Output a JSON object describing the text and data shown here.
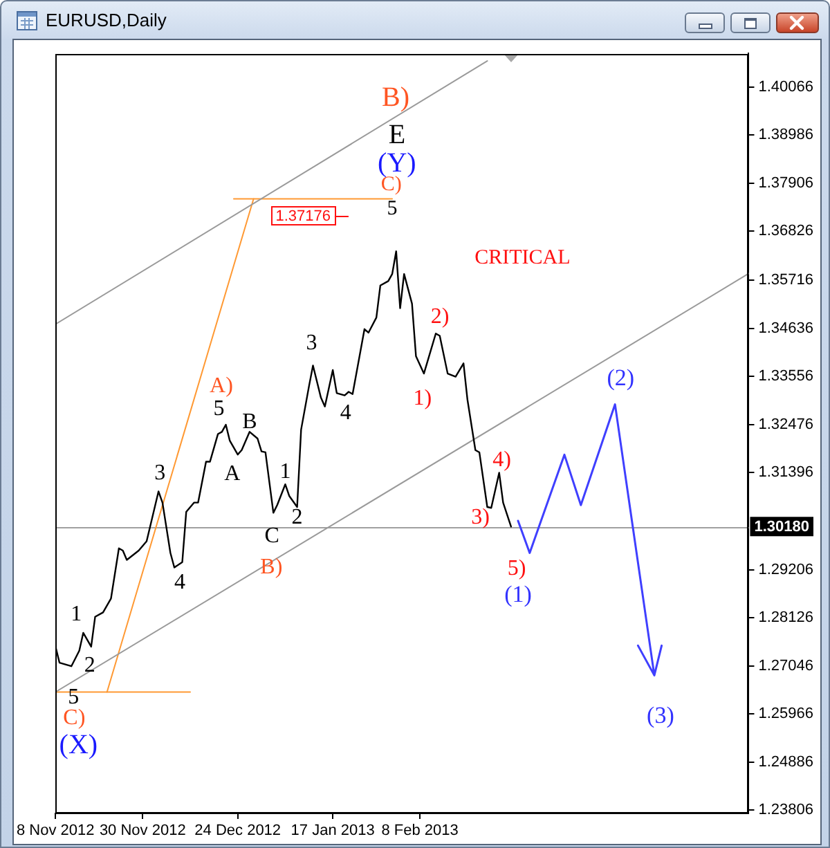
{
  "chart_data": {
    "type": "line",
    "title": "EURUSD,Daily",
    "series": [
      {
        "color": "#000000",
        "x": [
          "2012-11-08",
          "2012-11-09",
          "2012-11-12",
          "2012-11-14",
          "2012-11-15",
          "2012-11-17",
          "2012-11-18",
          "2012-11-20",
          "2012-11-22",
          "2012-11-24",
          "2012-11-25",
          "2012-11-26",
          "2012-11-29",
          "2012-12-01",
          "2012-12-04",
          "2012-12-05",
          "2012-12-07",
          "2012-12-08",
          "2012-12-10",
          "2012-12-11",
          "2012-12-13",
          "2012-12-14",
          "2012-12-16",
          "2012-12-17",
          "2012-12-19",
          "2012-12-20",
          "2012-12-21",
          "2012-12-22",
          "2012-12-24",
          "2012-12-25",
          "2012-12-27",
          "2012-12-29",
          "2012-12-30",
          "2012-12-31",
          "2013-01-02",
          "2013-01-03",
          "2013-01-05",
          "2013-01-06",
          "2013-01-08",
          "2013-01-09",
          "2013-01-11",
          "2013-01-12",
          "2013-01-14",
          "2013-01-15",
          "2013-01-17",
          "2013-01-18",
          "2013-01-20",
          "2013-01-21",
          "2013-01-22",
          "2013-01-25",
          "2013-01-26",
          "2013-01-28",
          "2013-01-29",
          "2013-01-31",
          "2013-02-01",
          "2013-02-02",
          "2013-02-03",
          "2013-02-04",
          "2013-02-06",
          "2013-02-07",
          "2013-02-09",
          "2013-02-12",
          "2013-02-13",
          "2013-02-15",
          "2013-02-17",
          "2013-02-19",
          "2013-02-20",
          "2013-02-22",
          "2013-02-23",
          "2013-02-25",
          "2013-02-26",
          "2013-02-28",
          "2013-03-01",
          "2013-03-03"
        ],
        "values": [
          1.2748,
          1.2712,
          1.2704,
          1.2739,
          1.2779,
          1.2748,
          1.2815,
          1.2825,
          1.2856,
          1.2969,
          1.2964,
          1.2943,
          1.2964,
          1.2985,
          1.3097,
          1.3072,
          1.2959,
          1.2926,
          1.2938,
          1.3051,
          1.3072,
          1.3072,
          1.3164,
          1.3164,
          1.3226,
          1.3231,
          1.3247,
          1.3211,
          1.318,
          1.319,
          1.3231,
          1.3216,
          1.3187,
          1.3185,
          1.3049,
          1.3067,
          1.3113,
          1.3087,
          1.3062,
          1.3236,
          1.3334,
          1.338,
          1.3308,
          1.3288,
          1.337,
          1.3318,
          1.3313,
          1.3321,
          1.3316,
          1.3462,
          1.3454,
          1.3488,
          1.356,
          1.357,
          1.3586,
          1.3637,
          1.3509,
          1.3586,
          1.3519,
          1.3401,
          1.3362,
          1.3452,
          1.3447,
          1.3362,
          1.3355,
          1.3385,
          1.3303,
          1.319,
          1.3185,
          1.3062,
          1.306,
          1.3139,
          1.3072,
          1.3018
        ]
      },
      {
        "color": "#9a9a9a",
        "x": [
          "2012-11-08",
          "2013-02-25"
        ],
        "values": [
          1.3473,
          1.4065
        ]
      },
      {
        "color": "#9a9a9a",
        "x": [
          "2012-11-08",
          "2013-05-02"
        ],
        "values": [
          1.2646,
          1.3587
        ]
      },
      {
        "color": "#ff9933",
        "x": [
          "2012-11-08",
          "2012-12-12"
        ],
        "values": [
          1.2646,
          1.2646
        ]
      },
      {
        "color": "#ff9933",
        "x": [
          "2012-11-21",
          "2012-12-28"
        ],
        "values": [
          1.2646,
          1.3755
        ]
      },
      {
        "color": "#ff9933",
        "x": [
          "2012-12-23",
          "2013-02-01"
        ],
        "values": [
          1.3755,
          1.3755
        ]
      }
    ],
    "xlim": [
      "2012-11-08",
      "2013-05-02"
    ],
    "xticks": [
      {
        "value": "2012-11-08",
        "label": "8 Nov 2012"
      },
      {
        "value": "2012-11-30",
        "label": "30 Nov 2012"
      },
      {
        "value": "2012-12-24",
        "label": "24 Dec 2012"
      },
      {
        "value": "2013-01-17",
        "label": "17 Jan 2013"
      },
      {
        "value": "2013-02-08",
        "label": "8 Feb 2013"
      }
    ],
    "ylim": [
      1.2373,
      1.4082
    ],
    "yticks": [
      1.23806,
      1.24886,
      1.25966,
      1.27046,
      1.28126,
      1.29206,
      1.31396,
      1.32476,
      1.33556,
      1.34636,
      1.35716,
      1.36826,
      1.37906,
      1.38986,
      1.40066
    ],
    "ref_lines": [
      {
        "axis": "y",
        "value": 1.3018,
        "label": "1.30180",
        "color": "#a0a0a0"
      }
    ],
    "annotations": [
      "B)",
      "E",
      "(Y)",
      "C)",
      "5",
      "1.37176",
      "CRITICAL",
      {
        "text": "3",
        "x": "2013-01-12",
        "y": 1.338
      },
      {
        "text": "4",
        "x": "2013-01-22",
        "y": 1.3316
      },
      {
        "text": "1)",
        "x": "2013-02-09",
        "y": 1.3362
      },
      {
        "text": "2)",
        "x": "2013-02-12",
        "y": 1.3452
      },
      "A)",
      {
        "text": "5",
        "x": "2012-12-21",
        "y": 1.3247
      },
      {
        "text": "B",
        "x": "2012-12-27",
        "y": 1.3231
      },
      {
        "text": "A",
        "x": "2012-12-24",
        "y": 1.318
      },
      {
        "text": "3",
        "x": "2012-12-04",
        "y": 1.3097
      },
      {
        "text": "1",
        "x": "2012-11-15",
        "y": 1.2779
      },
      {
        "text": "2",
        "x": "2012-11-17",
        "y": 1.2748
      },
      {
        "text": "4",
        "x": "2012-12-08",
        "y": 1.2926
      },
      {
        "text": "1",
        "x": "2013-01-05",
        "y": 1.3113
      },
      {
        "text": "2",
        "x": "2013-01-08",
        "y": 1.3062
      },
      {
        "text": "C",
        "x": "2013-01-02",
        "y": 1.3049
      },
      "B)",
      {
        "text": "5",
        "x": "2012-11-08",
        "y": 1.2646
      },
      "C)",
      "(X)",
      {
        "text": "3)",
        "x": "2013-02-25",
        "y": 1.3062
      },
      {
        "text": "4)",
        "x": "2013-02-28",
        "y": 1.3139
      },
      "5)",
      "(1)",
      "(2)",
      "(3)"
    ],
    "grid": false,
    "legend": false,
    "marker": "none"
  }
}
